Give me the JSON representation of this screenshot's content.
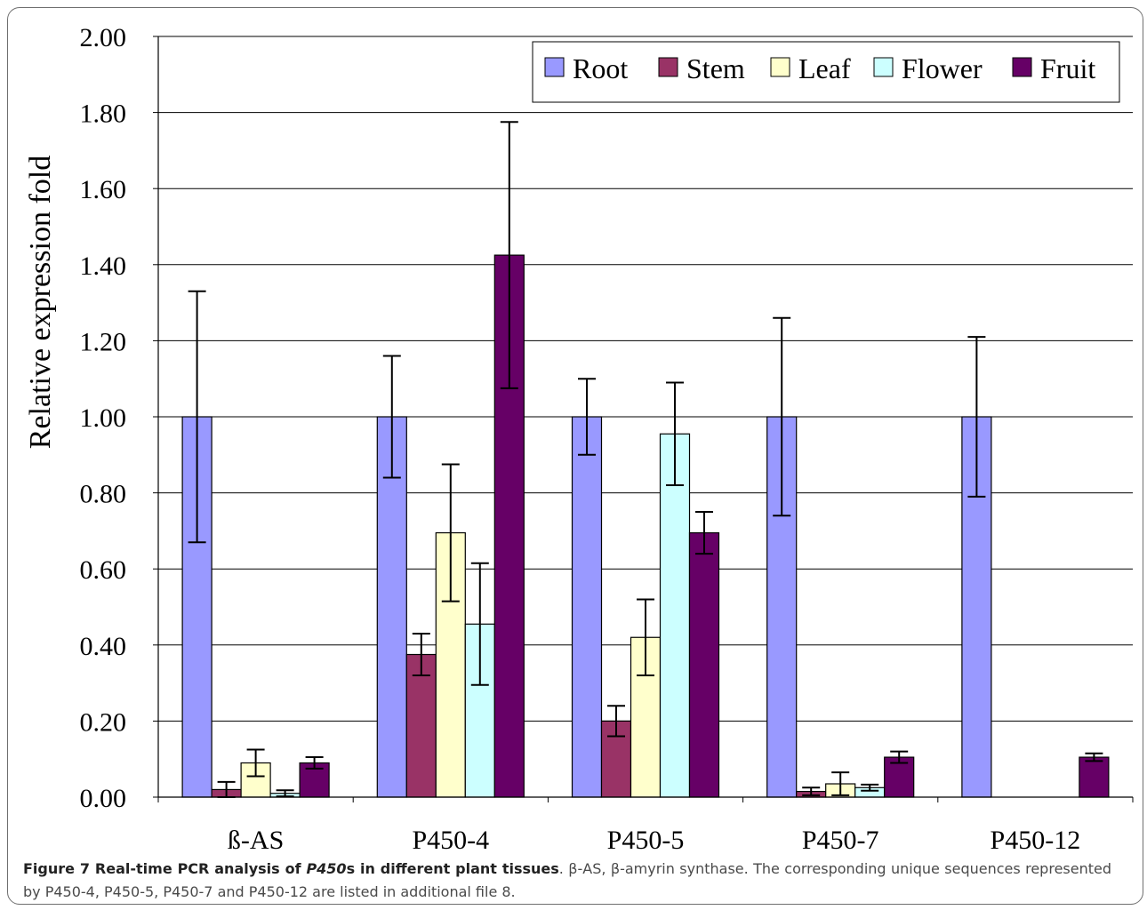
{
  "chart_data": {
    "type": "bar",
    "ylabel": "Relative expression fold",
    "ylim": [
      0,
      2.0
    ],
    "yticks": [
      "0.00",
      "0.20",
      "0.40",
      "0.60",
      "0.80",
      "1.00",
      "1.20",
      "1.40",
      "1.60",
      "1.80",
      "2.00"
    ],
    "grid": true,
    "legend_position": "top-right",
    "categories": [
      "ß-AS",
      "P450-4",
      "P450-5",
      "P450-7",
      "P450-12"
    ],
    "series": [
      {
        "name": "Root",
        "color": "#9999ff",
        "values": [
          1.0,
          1.0,
          1.0,
          1.0,
          1.0
        ],
        "errors": [
          0.33,
          0.16,
          0.1,
          0.26,
          0.21
        ]
      },
      {
        "name": "Stem",
        "color": "#993366",
        "values": [
          0.02,
          0.375,
          0.2,
          0.015,
          0.0
        ],
        "errors": [
          0.02,
          0.055,
          0.04,
          0.01,
          0.0
        ]
      },
      {
        "name": "Leaf",
        "color": "#ffffcc",
        "values": [
          0.09,
          0.695,
          0.42,
          0.035,
          0.0
        ],
        "errors": [
          0.035,
          0.18,
          0.1,
          0.03,
          0.0
        ]
      },
      {
        "name": "Flower",
        "color": "#ccffff",
        "values": [
          0.01,
          0.455,
          0.955,
          0.025,
          0.0
        ],
        "errors": [
          0.008,
          0.16,
          0.135,
          0.008,
          0.0
        ]
      },
      {
        "name": "Fruit",
        "color": "#660066",
        "values": [
          0.09,
          1.425,
          0.695,
          0.105,
          0.105
        ],
        "errors": [
          0.015,
          0.35,
          0.055,
          0.015,
          0.01
        ]
      }
    ]
  },
  "caption": {
    "label": "Figure 7",
    "title_before": " Real-time PCR analysis of ",
    "title_italic": "P450",
    "title_after": "s in different plant tissues",
    "body": ". β-AS, β-amyrin synthase. The corresponding unique sequences represented by P450-4, P450-5, P450-7 and P450-12 are listed in additional file 8."
  }
}
